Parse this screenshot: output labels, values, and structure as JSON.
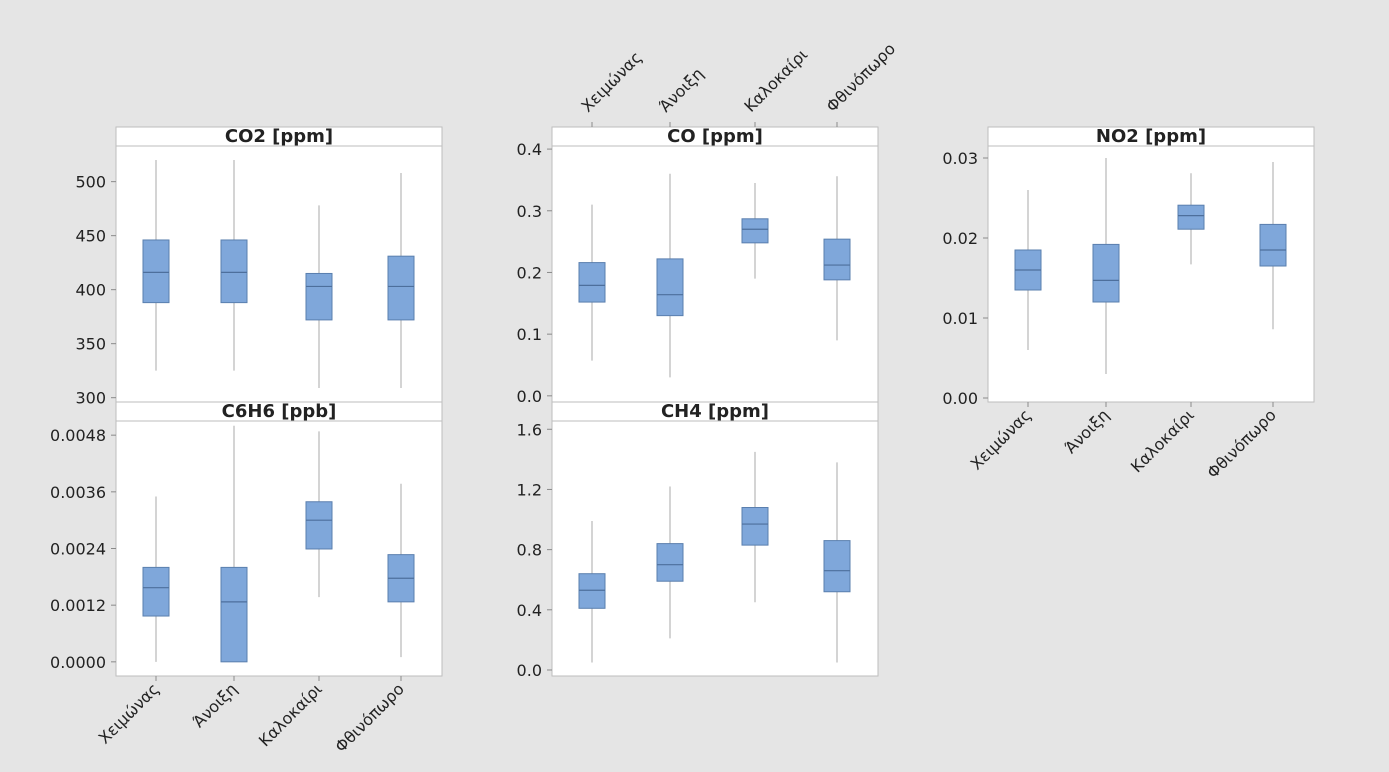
{
  "categories": [
    "Χειμώνας",
    "Άνοιξη",
    "Καλοκαίρι",
    "Φθινόπωρο"
  ],
  "colors": {
    "box_fill": "#7fa7da",
    "box_stroke": "#5a7fae",
    "whisker": "#a8a8a8",
    "background": "#e5e5e5"
  },
  "chart_data": [
    {
      "type": "boxplot",
      "title": "CO2 [ppm]",
      "categories": [
        "Χειμώνας",
        "Άνοιξη",
        "Καλοκαίρι",
        "Φθινόπωρο"
      ],
      "ylim": [
        296,
        533
      ],
      "yticks": [
        300,
        350,
        400,
        450,
        500
      ],
      "ytick_labels": [
        "300",
        "350",
        "400",
        "450",
        "500"
      ],
      "series": [
        {
          "min": 325,
          "q1": 388,
          "median": 416,
          "q3": 446,
          "max": 520
        },
        {
          "min": 325,
          "q1": 388,
          "median": 416,
          "q3": 446,
          "max": 520
        },
        {
          "min": 309,
          "q1": 372,
          "median": 403,
          "q3": 415,
          "max": 478
        },
        {
          "min": 309,
          "q1": 372,
          "median": 403,
          "q3": 431,
          "max": 508
        }
      ]
    },
    {
      "type": "boxplot",
      "title": "CO [ppm]",
      "categories": [
        "Χειμώνας",
        "Άνοιξη",
        "Καλοκαίρι",
        "Φθινόπωρο"
      ],
      "ylim": [
        -0.01,
        0.405
      ],
      "yticks": [
        0.0,
        0.1,
        0.2,
        0.3,
        0.4
      ],
      "ytick_labels": [
        "0.0",
        "0.1",
        "0.2",
        "0.3",
        "0.4"
      ],
      "series": [
        {
          "min": 0.057,
          "q1": 0.152,
          "median": 0.179,
          "q3": 0.216,
          "max": 0.31
        },
        {
          "min": 0.03,
          "q1": 0.13,
          "median": 0.164,
          "q3": 0.222,
          "max": 0.36
        },
        {
          "min": 0.19,
          "q1": 0.248,
          "median": 0.27,
          "q3": 0.287,
          "max": 0.345
        },
        {
          "min": 0.09,
          "q1": 0.188,
          "median": 0.212,
          "q3": 0.254,
          "max": 0.356
        }
      ]
    },
    {
      "type": "boxplot",
      "title": "NO2 [ppm]",
      "categories": [
        "Χειμώνας",
        "Άνοιξη",
        "Καλοκαίρι",
        "Φθινόπωρο"
      ],
      "ylim": [
        -0.0005,
        0.0315
      ],
      "yticks": [
        0.0,
        0.01,
        0.02,
        0.03
      ],
      "ytick_labels": [
        "0.00",
        "0.01",
        "0.02",
        "0.03"
      ],
      "series": [
        {
          "min": 0.006,
          "q1": 0.0135,
          "median": 0.016,
          "q3": 0.0185,
          "max": 0.026
        },
        {
          "min": 0.003,
          "q1": 0.012,
          "median": 0.0147,
          "q3": 0.0192,
          "max": 0.03
        },
        {
          "min": 0.0167,
          "q1": 0.0211,
          "median": 0.0228,
          "q3": 0.0241,
          "max": 0.0281
        },
        {
          "min": 0.0086,
          "q1": 0.0165,
          "median": 0.0185,
          "q3": 0.0217,
          "max": 0.0295
        }
      ]
    },
    {
      "type": "boxplot",
      "title": "C6H6 [ppb]",
      "categories": [
        "Χειμώνας",
        "Άνοιξη",
        "Καλοκαίρι",
        "Φθινόπωρο"
      ],
      "ylim": [
        -0.0003,
        0.0051
      ],
      "yticks": [
        0.0,
        0.0012,
        0.0024,
        0.0036,
        0.0048
      ],
      "ytick_labels": [
        "0.0000",
        "0.0012",
        "0.0024",
        "0.0036",
        "0.0048"
      ],
      "series": [
        {
          "min": 0.0,
          "q1": 0.00097,
          "median": 0.00157,
          "q3": 0.002,
          "max": 0.0035
        },
        {
          "min": 0.0,
          "q1": 0.0,
          "median": 0.00127,
          "q3": 0.002,
          "max": 0.005
        },
        {
          "min": 0.00137,
          "q1": 0.00239,
          "median": 0.003,
          "q3": 0.00339,
          "max": 0.00488
        },
        {
          "min": 0.0001,
          "q1": 0.00127,
          "median": 0.00177,
          "q3": 0.00227,
          "max": 0.00377
        }
      ]
    },
    {
      "type": "boxplot",
      "title": "CH4 [ppm]",
      "categories": [
        "Χειμώνας",
        "Άνοιξη",
        "Καλοκαίρι",
        "Φθινόπωρο"
      ],
      "ylim": [
        -0.04,
        1.655
      ],
      "yticks": [
        0.0,
        0.4,
        0.8,
        1.2,
        1.6
      ],
      "ytick_labels": [
        "0.0",
        "0.4",
        "0.8",
        "1.2",
        "1.6"
      ],
      "series": [
        {
          "min": 0.05,
          "q1": 0.41,
          "median": 0.53,
          "q3": 0.64,
          "max": 0.99
        },
        {
          "min": 0.21,
          "q1": 0.59,
          "median": 0.7,
          "q3": 0.84,
          "max": 1.22
        },
        {
          "min": 0.45,
          "q1": 0.83,
          "median": 0.97,
          "q3": 1.08,
          "max": 1.45
        },
        {
          "min": 0.05,
          "q1": 0.52,
          "median": 0.66,
          "q3": 0.86,
          "max": 1.38
        }
      ]
    }
  ]
}
